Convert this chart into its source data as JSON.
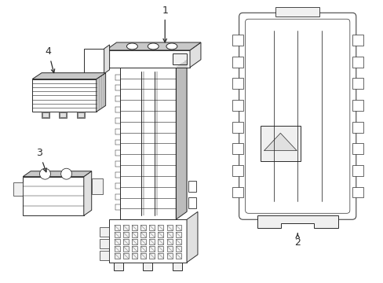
{
  "bg_color": "#ffffff",
  "line_color": "#2a2a2a",
  "line_width": 0.7,
  "figsize": [
    4.89,
    3.6
  ],
  "dpi": 100
}
